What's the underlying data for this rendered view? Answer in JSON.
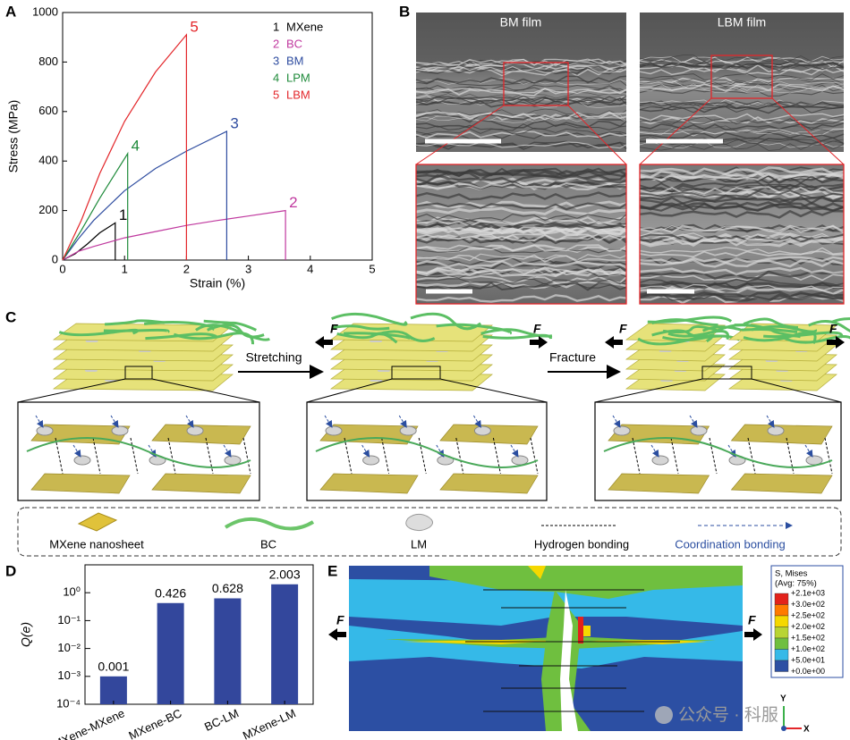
{
  "chart_data": [
    {
      "type": "line",
      "panel": "A",
      "x_label": "Strain (%)",
      "y_label": "Stress (MPa)",
      "xlim": [
        0,
        5
      ],
      "xticks": [
        0,
        1,
        2,
        3,
        4,
        5
      ],
      "ylim": [
        0,
        1000
      ],
      "yticks": [
        0,
        200,
        400,
        600,
        800,
        1000
      ],
      "series": [
        {
          "label": "1",
          "name": "MXene",
          "color": "#000000",
          "x": [
            0,
            0.2,
            0.4,
            0.6,
            0.85,
            0.85
          ],
          "values": [
            0,
            25,
            65,
            110,
            150,
            0
          ]
        },
        {
          "label": "2",
          "name": "BC",
          "color": "#c0399f",
          "x": [
            0,
            0.25,
            0.5,
            1,
            1.5,
            2,
            2.5,
            3,
            3.6,
            3.6
          ],
          "values": [
            0,
            35,
            55,
            90,
            115,
            140,
            160,
            178,
            200,
            0
          ]
        },
        {
          "label": "3",
          "name": "BM",
          "color": "#2f4da0",
          "x": [
            0,
            0.25,
            0.5,
            1,
            1.5,
            2,
            2.65,
            2.65
          ],
          "values": [
            0,
            85,
            160,
            280,
            370,
            440,
            520,
            0
          ]
        },
        {
          "label": "4",
          "name": "LPM",
          "color": "#1e8a3a",
          "x": [
            0,
            0.3,
            0.6,
            0.85,
            1.05,
            1.05
          ],
          "values": [
            0,
            120,
            250,
            350,
            430,
            0
          ]
        },
        {
          "label": "5",
          "name": "LBM",
          "color": "#e3262a",
          "x": [
            0,
            0.3,
            0.6,
            1,
            1.5,
            2,
            2
          ],
          "values": [
            0,
            160,
            350,
            560,
            760,
            910,
            0
          ]
        }
      ]
    },
    {
      "type": "bar",
      "panel": "D",
      "y_label": "Q(e)",
      "log_scale": true,
      "color": "#33479c",
      "categories": [
        "MXene-MXene",
        "MXene-BC",
        "BC-LM",
        "MXene-LM"
      ],
      "values": [
        0.001,
        0.426,
        0.628,
        2.003
      ],
      "ylim": [
        0.0001,
        10
      ],
      "yticks": [
        {
          "value": 0.0001,
          "label": "10⁻⁴"
        },
        {
          "value": 0.001,
          "label": "10⁻³"
        },
        {
          "value": 0.01,
          "label": "10⁻²"
        },
        {
          "value": 0.1,
          "label": "10⁻¹"
        },
        {
          "value": 1,
          "label": "10⁰"
        }
      ]
    }
  ],
  "panel_b": {
    "label": "B",
    "images": [
      "BM film",
      "LBM film"
    ]
  },
  "panel_c": {
    "label": "C",
    "steps": [
      "Stretching",
      "Fracture"
    ],
    "force": "F",
    "legend": [
      "MXene nanosheet",
      "BC",
      "LM",
      "Hydrogen bonding",
      "Coordination bonding"
    ]
  },
  "panel_e": {
    "label": "E",
    "force": "F",
    "legend_title": "S, Mises",
    "legend_subtitle": "(Avg: 75%)",
    "legend_labels": [
      "+2.1e+03",
      "+3.0e+02",
      "+2.5e+02",
      "+2.0e+02",
      "+1.5e+02",
      "+1.0e+02",
      "+5.0e+01",
      "+0.0e+00"
    ],
    "legend_colors": [
      "#e3221b",
      "#ff7a00",
      "#f5d800",
      "#b8d433",
      "#6fbf3f",
      "#35b9e8",
      "#2c4fa3"
    ],
    "axes": [
      "Y",
      "X"
    ],
    "watermark": "公众号 · 科服"
  }
}
